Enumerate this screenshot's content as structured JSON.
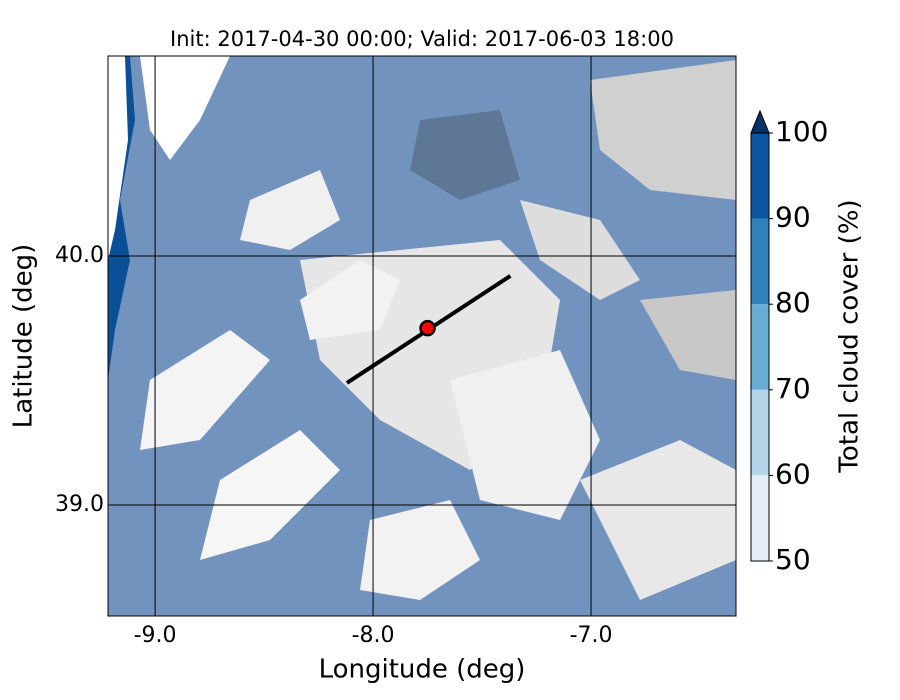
{
  "chart_data": {
    "type": "map",
    "title": "Init: 2017-04-30 00:00; Valid: 2017-06-03 18:00",
    "xlabel": "Longitude (deg)",
    "ylabel": "Latitude (deg)",
    "xlim": [
      -9.216,
      -6.335
    ],
    "ylim": [
      38.554,
      40.803
    ],
    "xticks": [
      {
        "value": -9,
        "label": "-9.0"
      },
      {
        "value": -8,
        "label": "-8.0"
      },
      {
        "value": -7,
        "label": "-7.0"
      }
    ],
    "yticks": [
      {
        "value": 39,
        "label": "39.0"
      },
      {
        "value": 40,
        "label": "40.0"
      }
    ],
    "grid": true,
    "section": {
      "lon": [
        -8.12,
        -7.37
      ],
      "lat": [
        39.49,
        39.92
      ],
      "color": "#000000"
    },
    "point": {
      "lon": -7.75,
      "lat": 39.71,
      "color": "#ff0000"
    },
    "colorbar": {
      "label": "Total cloud cover (%)",
      "ticks": [
        50,
        60,
        70,
        80,
        90,
        100
      ],
      "colors": [
        "#e3eef8",
        "#b5d3e9",
        "#6aaed6",
        "#3181bd",
        "#0b559f"
      ],
      "extend_color": "#08306b"
    }
  }
}
